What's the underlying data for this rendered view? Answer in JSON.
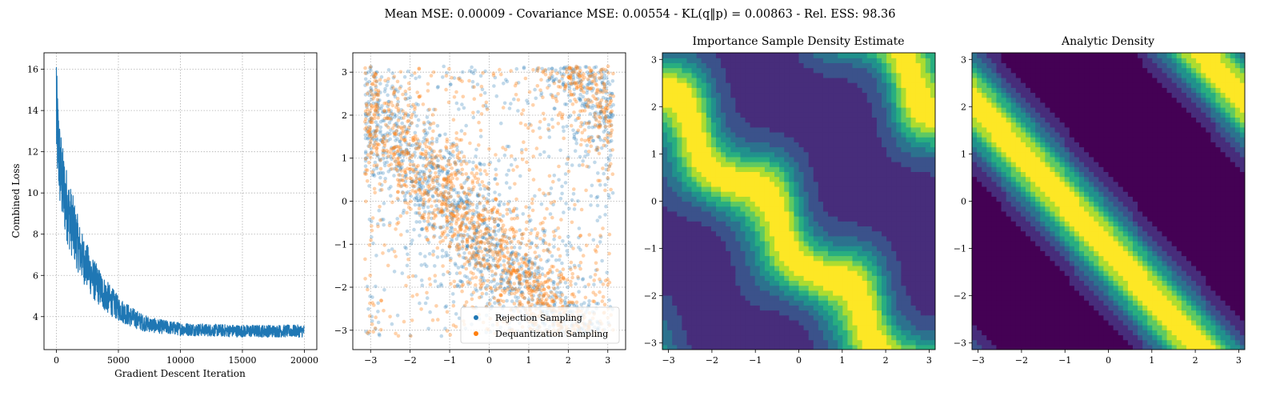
{
  "suptitle": "Mean MSE: 0.00009 - Covariance MSE: 0.00554 - KL(q‖p) = 0.00863 - Rel. ESS: 98.36",
  "colors": {
    "loss": "#1f77b4",
    "rejection": "#1f77b4",
    "dequantization": "#ff7f0e",
    "viridis": [
      "#440154",
      "#472d7b",
      "#3b528b",
      "#2c728e",
      "#21918c",
      "#28ae80",
      "#5ec962",
      "#addc30",
      "#fde725"
    ]
  },
  "chart_data": [
    {
      "type": "line",
      "title": "",
      "xlabel": "Gradient Descent Iteration",
      "ylabel": "Combined Loss",
      "xlim": [
        -1000,
        21000
      ],
      "ylim": [
        2.4,
        16.8
      ],
      "xticks": [
        "0",
        "5000",
        "10000",
        "15000",
        "20000"
      ],
      "yticks": [
        "4",
        "6",
        "8",
        "10",
        "12",
        "14",
        "16"
      ],
      "grid": true,
      "series": [
        {
          "x": [
            0,
            250,
            500,
            1000,
            1500,
            2000,
            3000,
            4000,
            5000,
            6000,
            7000,
            8000,
            10000,
            12000,
            15000,
            18000,
            20000
          ],
          "y": [
            13.5,
            11.5,
            10.3,
            9.0,
            8.0,
            7.0,
            5.8,
            5.0,
            4.4,
            4.0,
            3.7,
            3.55,
            3.4,
            3.35,
            3.3,
            3.3,
            3.3
          ],
          "spread": [
            2.6,
            2.2,
            2.0,
            1.7,
            1.5,
            1.2,
            1.0,
            0.8,
            0.6,
            0.5,
            0.4,
            0.35,
            0.32,
            0.3,
            0.3,
            0.3,
            0.3
          ]
        }
      ]
    },
    {
      "type": "scatter",
      "title": "",
      "xlim": [
        -3.45,
        3.45
      ],
      "ylim": [
        -3.45,
        3.45
      ],
      "xticks": [
        "−3",
        "−2",
        "−1",
        "0",
        "1",
        "2",
        "3"
      ],
      "yticks": [
        "−3",
        "−2",
        "−1",
        "0",
        "1",
        "2",
        "3"
      ],
      "grid": true,
      "legend": "lower-right",
      "series": [
        {
          "name": "Rejection Sampling"
        },
        {
          "name": "Dequantization Sampling"
        }
      ]
    },
    {
      "type": "heatmap",
      "title": "Importance Sample Density Estimate",
      "xlim": [
        -3.14,
        3.14
      ],
      "ylim": [
        -3.14,
        3.14
      ],
      "xticks": [
        "−3",
        "−2",
        "−1",
        "0",
        "1",
        "2",
        "3"
      ],
      "yticks": [
        "−3",
        "−2",
        "−1",
        "0",
        "1",
        "2",
        "3"
      ],
      "levels": 9
    },
    {
      "type": "heatmap",
      "title": "Analytic Density",
      "xlim": [
        -3.14,
        3.14
      ],
      "ylim": [
        -3.14,
        3.14
      ],
      "xticks": [
        "−3",
        "−2",
        "−1",
        "0",
        "1",
        "2",
        "3"
      ],
      "yticks": [
        "−3",
        "−2",
        "−1",
        "0",
        "1",
        "2",
        "3"
      ],
      "levels": 9
    }
  ]
}
